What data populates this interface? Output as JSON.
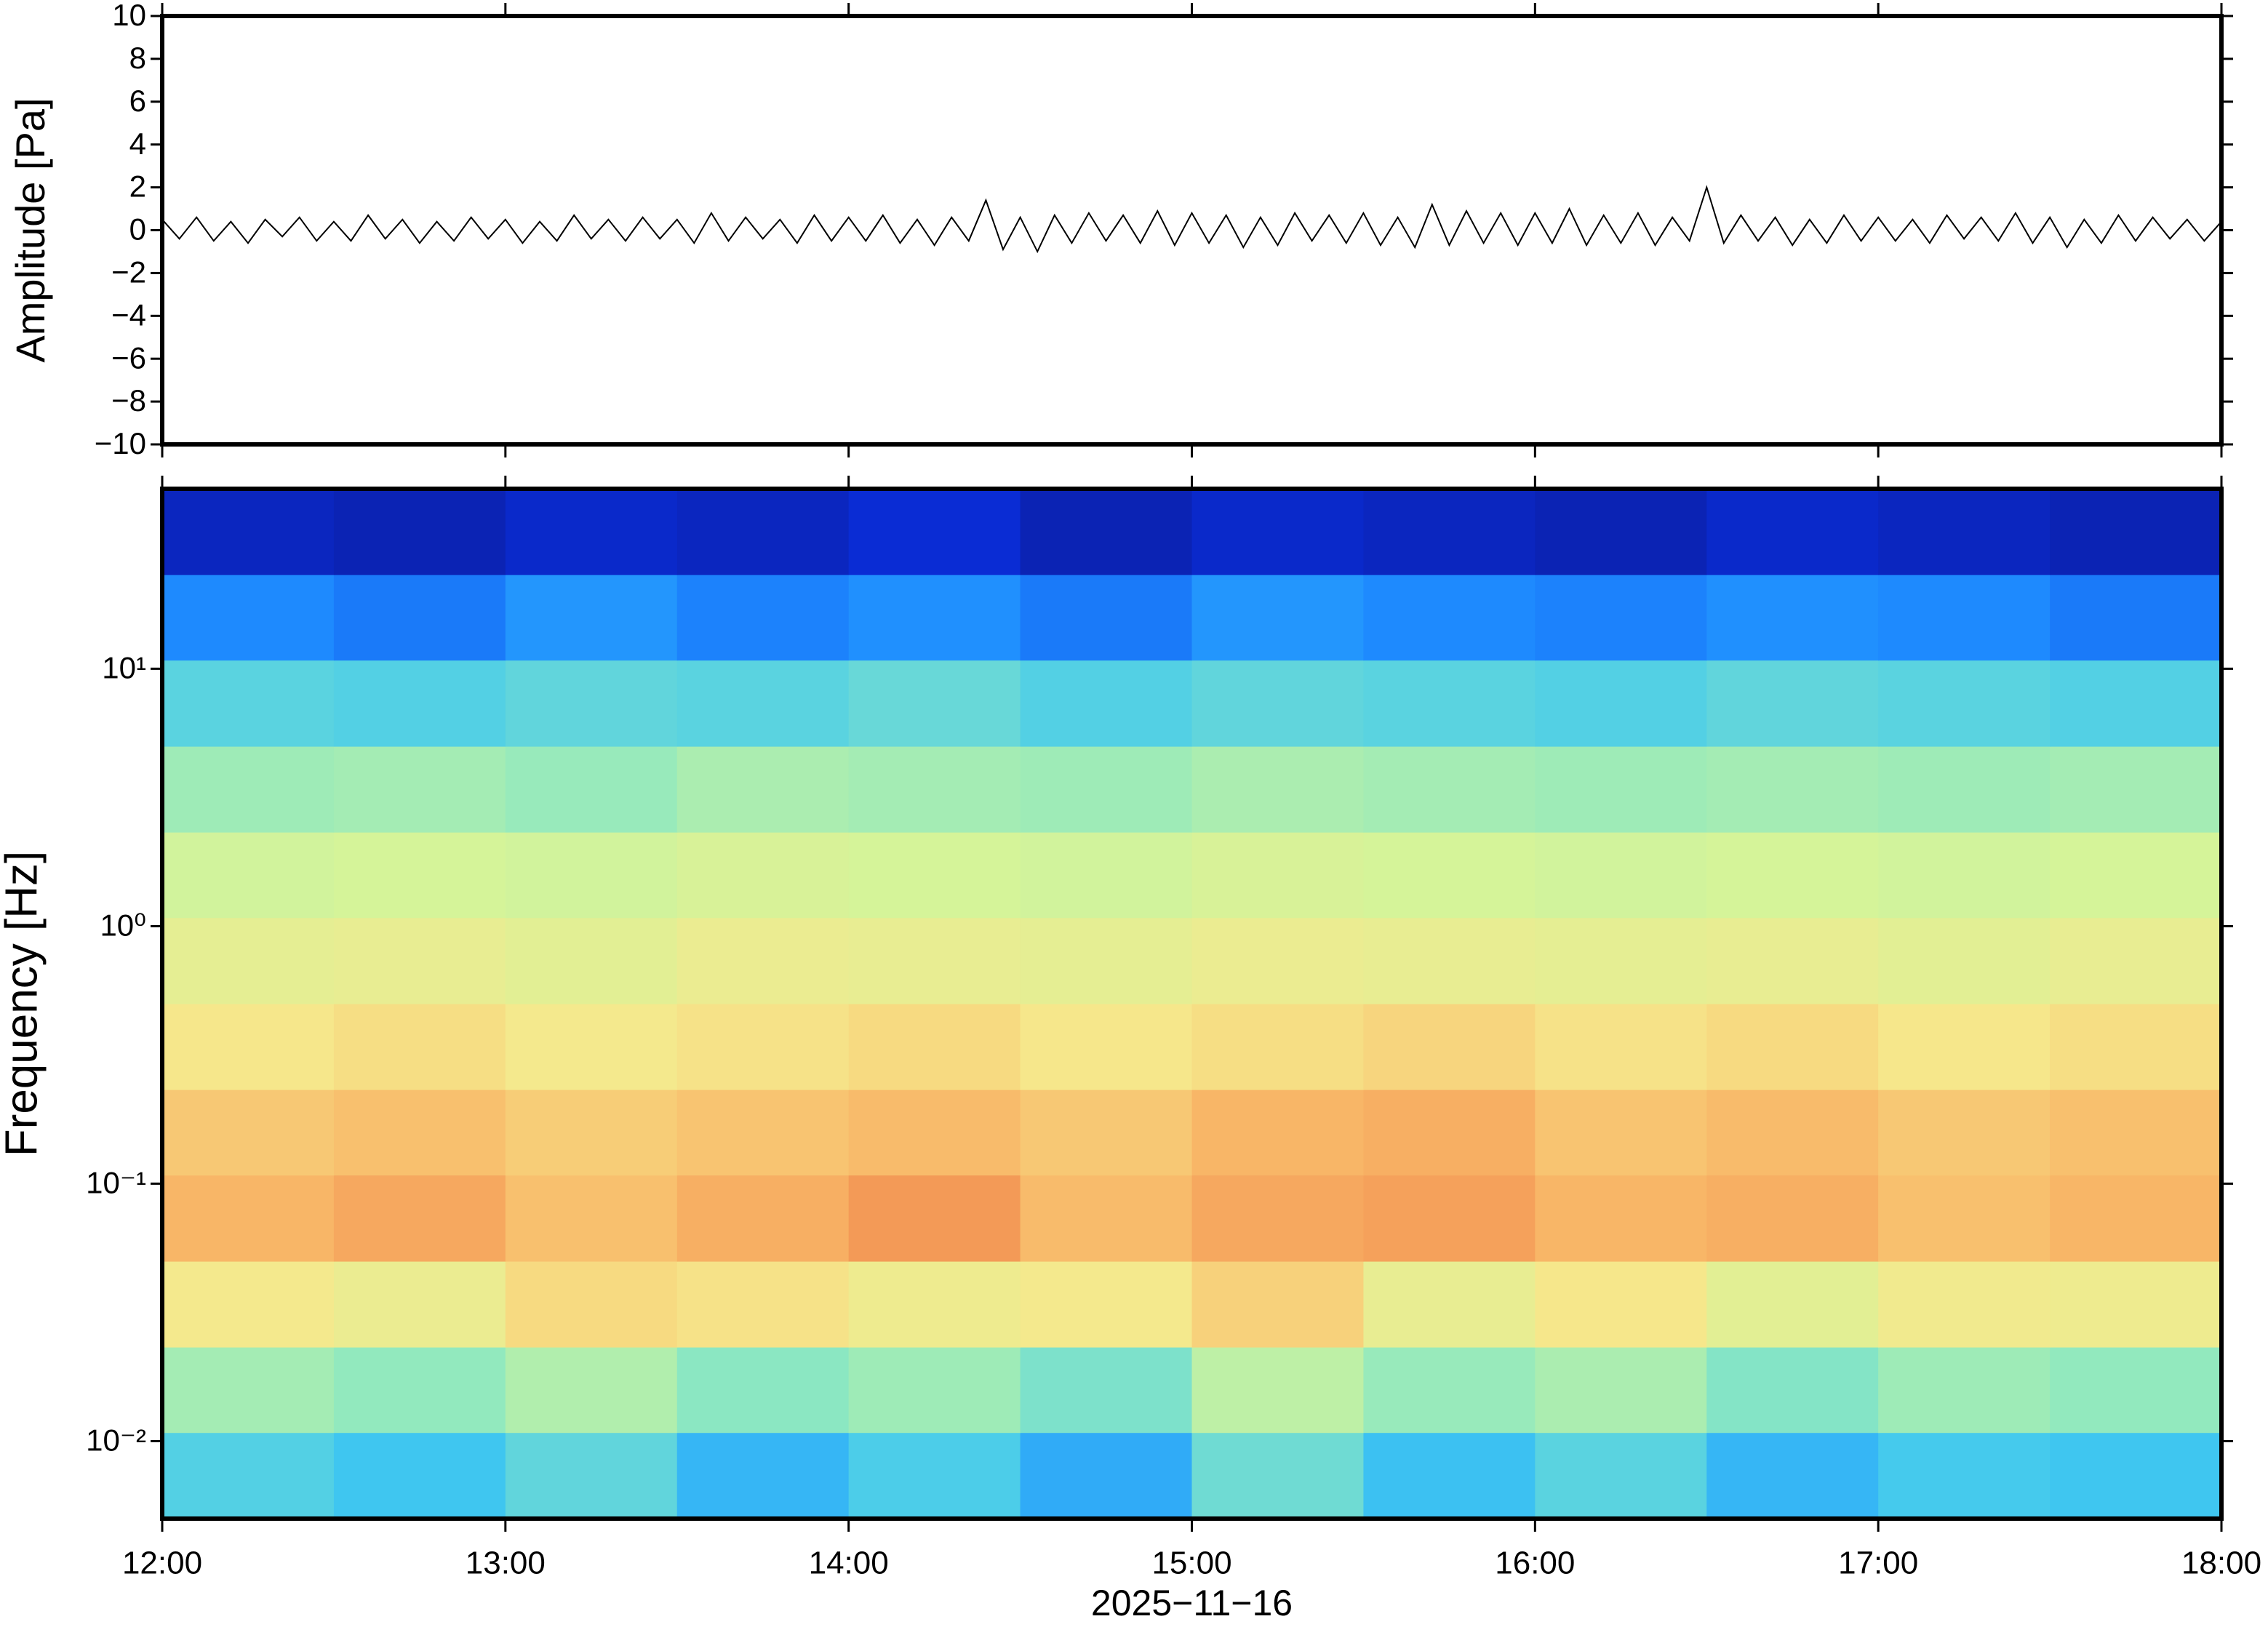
{
  "chart_data": [
    {
      "type": "line",
      "ylabel": "Amplitude [Pa]",
      "color": "#000000",
      "xlim": [
        12,
        18
      ],
      "ylim": [
        -10,
        10
      ],
      "yticks": [
        {
          "value": -10,
          "label": "−10"
        },
        {
          "value": -8,
          "label": "−8"
        },
        {
          "value": -6,
          "label": "−6"
        },
        {
          "value": -4,
          "label": "−4"
        },
        {
          "value": -2,
          "label": "−2"
        },
        0,
        2,
        4,
        6,
        8,
        10
      ],
      "x": [
        12,
        12.05,
        12.1,
        12.15,
        12.2,
        12.25,
        12.3,
        12.35,
        12.4,
        12.45,
        12.5,
        12.55,
        12.6,
        12.65,
        12.7,
        12.75,
        12.8,
        12.85,
        12.9,
        12.95,
        13,
        13.05,
        13.1,
        13.15,
        13.2,
        13.25,
        13.3,
        13.35,
        13.4,
        13.45,
        13.5,
        13.55,
        13.6,
        13.65,
        13.7,
        13.75,
        13.8,
        13.85,
        13.9,
        13.95,
        14,
        14.05,
        14.1,
        14.15,
        14.2,
        14.25,
        14.3,
        14.35,
        14.4,
        14.45,
        14.5,
        14.55,
        14.6,
        14.65,
        14.7,
        14.75,
        14.8,
        14.85,
        14.9,
        14.95,
        15,
        15.05,
        15.1,
        15.15,
        15.2,
        15.25,
        15.3,
        15.35,
        15.4,
        15.45,
        15.5,
        15.55,
        15.6,
        15.65,
        15.7,
        15.75,
        15.8,
        15.85,
        15.9,
        15.95,
        16,
        16.05,
        16.1,
        16.15,
        16.2,
        16.25,
        16.3,
        16.35,
        16.4,
        16.45,
        16.5,
        16.55,
        16.6,
        16.65,
        16.7,
        16.75,
        16.8,
        16.85,
        16.9,
        16.95,
        17,
        17.05,
        17.1,
        17.15,
        17.2,
        17.25,
        17.3,
        17.35,
        17.4,
        17.45,
        17.5,
        17.55,
        17.6,
        17.65,
        17.7,
        17.75,
        17.8,
        17.85,
        17.9,
        17.95,
        18
      ],
      "values": [
        0.5,
        -0.4,
        0.6,
        -0.5,
        0.4,
        -0.6,
        0.5,
        -0.3,
        0.6,
        -0.5,
        0.4,
        -0.5,
        0.7,
        -0.4,
        0.5,
        -0.6,
        0.4,
        -0.5,
        0.6,
        -0.4,
        0.5,
        -0.6,
        0.4,
        -0.5,
        0.7,
        -0.4,
        0.5,
        -0.5,
        0.6,
        -0.4,
        0.5,
        -0.6,
        0.8,
        -0.5,
        0.6,
        -0.4,
        0.5,
        -0.6,
        0.7,
        -0.5,
        0.6,
        -0.5,
        0.7,
        -0.6,
        0.5,
        -0.7,
        0.6,
        -0.5,
        1.4,
        -0.9,
        0.6,
        -1.0,
        0.7,
        -0.6,
        0.8,
        -0.5,
        0.7,
        -0.6,
        0.9,
        -0.7,
        0.8,
        -0.6,
        0.7,
        -0.8,
        0.6,
        -0.7,
        0.8,
        -0.5,
        0.7,
        -0.6,
        0.8,
        -0.7,
        0.6,
        -0.8,
        1.2,
        -0.7,
        0.9,
        -0.6,
        0.8,
        -0.7,
        0.8,
        -0.6,
        1.0,
        -0.7,
        0.7,
        -0.6,
        0.8,
        -0.7,
        0.6,
        -0.5,
        2.0,
        -0.6,
        0.7,
        -0.5,
        0.6,
        -0.7,
        0.5,
        -0.6,
        0.7,
        -0.5,
        0.6,
        -0.5,
        0.5,
        -0.6,
        0.7,
        -0.4,
        0.6,
        -0.5,
        0.8,
        -0.6,
        0.6,
        -0.8,
        0.5,
        -0.6,
        0.7,
        -0.5,
        0.6,
        -0.4,
        0.5,
        -0.5,
        0.4
      ]
    },
    {
      "type": "heatmap",
      "ylabel": "Frequency [Hz]",
      "xlabel": "2025−11−16",
      "ylog": true,
      "xlim": [
        12,
        18
      ],
      "ylim": [
        0.005,
        50
      ],
      "zlim": [
        0,
        1
      ],
      "xticks": [
        {
          "value": 12,
          "label": "12:00"
        },
        {
          "value": 13,
          "label": "13:00"
        },
        {
          "value": 14,
          "label": "14:00"
        },
        {
          "value": 15,
          "label": "15:00"
        },
        {
          "value": 16,
          "label": "16:00"
        },
        {
          "value": 17,
          "label": "17:00"
        },
        {
          "value": 18,
          "label": "18:00"
        }
      ],
      "yticks": [
        {
          "value": 0.01,
          "label": "10⁻²"
        },
        {
          "value": 0.1,
          "label": "10⁻¹"
        },
        {
          "value": 1,
          "label": "10⁰"
        },
        {
          "value": 10,
          "label": "10¹"
        }
      ],
      "colormap": [
        "#0c0c6a",
        "#0a30e0",
        "#1e8cff",
        "#40c8f0",
        "#8ee8c0",
        "#d4f49a",
        "#f6e88c",
        "#f8b868",
        "#ec6a3a",
        "#b01818"
      ],
      "xbins": [
        12,
        12.5,
        13,
        13.5,
        14,
        14.5,
        15,
        15.5,
        16,
        16.5,
        17,
        17.5,
        18
      ],
      "ybins": [
        0.005,
        0.0108,
        0.0232,
        0.05,
        0.108,
        0.232,
        0.5,
        1.08,
        2.32,
        5,
        10.8,
        23.2,
        50
      ],
      "values": [
        [
          0.36,
          0.33,
          0.38,
          0.3,
          0.35,
          0.28,
          0.4,
          0.32,
          0.37,
          0.3,
          0.34,
          0.33
        ],
        [
          0.48,
          0.45,
          0.5,
          0.44,
          0.47,
          0.42,
          0.52,
          0.46,
          0.49,
          0.43,
          0.47,
          0.45
        ],
        [
          0.66,
          0.63,
          0.7,
          0.68,
          0.64,
          0.66,
          0.72,
          0.62,
          0.67,
          0.6,
          0.65,
          0.64
        ],
        [
          0.78,
          0.8,
          0.76,
          0.79,
          0.82,
          0.77,
          0.8,
          0.81,
          0.78,
          0.79,
          0.76,
          0.78
        ],
        [
          0.74,
          0.76,
          0.73,
          0.75,
          0.77,
          0.74,
          0.78,
          0.79,
          0.75,
          0.77,
          0.74,
          0.76
        ],
        [
          0.67,
          0.69,
          0.66,
          0.68,
          0.7,
          0.67,
          0.69,
          0.71,
          0.68,
          0.7,
          0.67,
          0.69
        ],
        [
          0.61,
          0.62,
          0.6,
          0.63,
          0.62,
          0.61,
          0.63,
          0.62,
          0.61,
          0.62,
          0.6,
          0.62
        ],
        [
          0.55,
          0.56,
          0.55,
          0.57,
          0.56,
          0.55,
          0.57,
          0.56,
          0.55,
          0.56,
          0.55,
          0.56
        ],
        [
          0.47,
          0.48,
          0.46,
          0.49,
          0.48,
          0.47,
          0.49,
          0.48,
          0.47,
          0.48,
          0.47,
          0.48
        ],
        [
          0.37,
          0.36,
          0.38,
          0.37,
          0.39,
          0.36,
          0.38,
          0.37,
          0.36,
          0.38,
          0.37,
          0.36
        ],
        [
          0.22,
          0.2,
          0.24,
          0.21,
          0.23,
          0.2,
          0.24,
          0.22,
          0.21,
          0.23,
          0.22,
          0.2
        ],
        [
          0.08,
          0.07,
          0.09,
          0.08,
          0.1,
          0.07,
          0.09,
          0.08,
          0.07,
          0.09,
          0.08,
          0.07
        ]
      ]
    }
  ]
}
